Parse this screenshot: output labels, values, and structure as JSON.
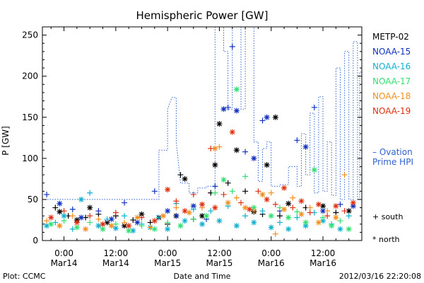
{
  "footer": {
    "left": "Plot: CCMC",
    "center": "Date and Time",
    "right": "2012/03/16 22:20:08"
  },
  "chart_data": {
    "type": "scatter",
    "title": "Hemispheric Power [GW]",
    "xlabel": "Date and Time",
    "ylabel": "P [GW]",
    "ylim": [
      0,
      260
    ],
    "xlim_hours": [
      -5,
      69
    ],
    "y_ticks": [
      0,
      50,
      100,
      150,
      200,
      250
    ],
    "x_ticks": [
      {
        "hours": 0,
        "time": "0:00",
        "date": "Mar14"
      },
      {
        "hours": 12,
        "time": "12:00",
        "date": "Mar14"
      },
      {
        "hours": 24,
        "time": "0:00",
        "date": "Mar15"
      },
      {
        "hours": 36,
        "time": "12:00",
        "date": "Mar15"
      },
      {
        "hours": 48,
        "time": "0:00",
        "date": "Mar16"
      },
      {
        "hours": 60,
        "time": "12:00",
        "date": "Mar16"
      }
    ],
    "grid": false,
    "legend_placement": "right",
    "symbol_legend": {
      "plus": "+ south",
      "star": "* north"
    },
    "series": [
      {
        "name": "METP-02",
        "color": "#000000",
        "points": [
          [
            -2,
            40,
            "+"
          ],
          [
            -1,
            35,
            "*"
          ],
          [
            1,
            30,
            "+"
          ],
          [
            3,
            25,
            "*"
          ],
          [
            5,
            28,
            "+"
          ],
          [
            6,
            40,
            "*"
          ],
          [
            8,
            32,
            "+"
          ],
          [
            10,
            22,
            "*"
          ],
          [
            12,
            30,
            "+"
          ],
          [
            14,
            18,
            "*"
          ],
          [
            16,
            25,
            "+"
          ],
          [
            18,
            32,
            "*"
          ],
          [
            20,
            22,
            "+"
          ],
          [
            22,
            28,
            "*"
          ],
          [
            24,
            20,
            "+"
          ],
          [
            26,
            30,
            "*"
          ],
          [
            27,
            80,
            "+"
          ],
          [
            28,
            75,
            "*"
          ],
          [
            30,
            26,
            "+"
          ],
          [
            32,
            30,
            "*"
          ],
          [
            34,
            58,
            "+"
          ],
          [
            35,
            92,
            "*"
          ],
          [
            36,
            142,
            "*"
          ],
          [
            38,
            70,
            "+"
          ],
          [
            40,
            110,
            "*"
          ],
          [
            42,
            60,
            "+"
          ],
          [
            44,
            35,
            "*"
          ],
          [
            46,
            32,
            "+"
          ],
          [
            47,
            92,
            "*"
          ],
          [
            49,
            150,
            "*"
          ],
          [
            50,
            30,
            "+"
          ],
          [
            52,
            45,
            "*"
          ],
          [
            56,
            40,
            "+"
          ],
          [
            60,
            42,
            "*"
          ],
          [
            63,
            34,
            "+"
          ],
          [
            66,
            36,
            "*"
          ]
        ]
      },
      {
        "name": "NOAA-15",
        "color": "#1030c0",
        "points": [
          [
            -4,
            56,
            "+"
          ],
          [
            -1,
            45,
            "*"
          ],
          [
            2,
            38,
            "+"
          ],
          [
            4,
            28,
            "*"
          ],
          [
            8,
            36,
            "+"
          ],
          [
            11,
            26,
            "*"
          ],
          [
            14,
            46,
            "+"
          ],
          [
            17,
            22,
            "*"
          ],
          [
            21,
            60,
            "+"
          ],
          [
            24,
            36,
            "*"
          ],
          [
            26,
            30,
            "+"
          ],
          [
            30,
            42,
            "*"
          ],
          [
            33,
            26,
            "+"
          ],
          [
            35,
            66,
            "+"
          ],
          [
            37,
            160,
            "*"
          ],
          [
            38,
            162,
            "+"
          ],
          [
            39,
            236,
            "+"
          ],
          [
            40,
            158,
            "*"
          ],
          [
            42,
            108,
            "+"
          ],
          [
            44,
            100,
            "*"
          ],
          [
            46,
            146,
            "+"
          ],
          [
            47,
            150,
            "*"
          ],
          [
            50,
            36,
            "+"
          ],
          [
            54,
            122,
            "+"
          ],
          [
            56,
            114,
            "*"
          ],
          [
            58,
            162,
            "+"
          ],
          [
            60,
            36,
            "*"
          ],
          [
            64,
            44,
            "+"
          ],
          [
            67,
            42,
            "*"
          ]
        ]
      },
      {
        "name": "NOAA-16",
        "color": "#10b0d0",
        "points": [
          [
            -4,
            18,
            "*"
          ],
          [
            -2,
            22,
            "+"
          ],
          [
            0,
            30,
            "*"
          ],
          [
            2,
            14,
            "+"
          ],
          [
            4,
            50,
            "*"
          ],
          [
            6,
            58,
            "+"
          ],
          [
            8,
            18,
            "*"
          ],
          [
            10,
            26,
            "+"
          ],
          [
            12,
            15,
            "*"
          ],
          [
            14,
            30,
            "+"
          ],
          [
            16,
            12,
            "*"
          ],
          [
            18,
            20,
            "+"
          ],
          [
            20,
            16,
            "*"
          ],
          [
            22,
            28,
            "+"
          ],
          [
            24,
            14,
            "*"
          ],
          [
            26,
            45,
            "+"
          ],
          [
            28,
            24,
            "*"
          ],
          [
            30,
            38,
            "+"
          ],
          [
            32,
            20,
            "*"
          ],
          [
            34,
            36,
            "+"
          ],
          [
            36,
            24,
            "*"
          ],
          [
            38,
            42,
            "+"
          ],
          [
            40,
            18,
            "*"
          ],
          [
            42,
            30,
            "+"
          ],
          [
            44,
            22,
            "*"
          ],
          [
            46,
            36,
            "+"
          ],
          [
            48,
            16,
            "*"
          ],
          [
            50,
            22,
            "+"
          ],
          [
            52,
            14,
            "*"
          ],
          [
            54,
            28,
            "+"
          ],
          [
            56,
            18,
            "*"
          ],
          [
            58,
            34,
            "+"
          ],
          [
            60,
            24,
            "*"
          ],
          [
            62,
            20,
            "+"
          ],
          [
            64,
            14,
            "*"
          ],
          [
            66,
            30,
            "+"
          ]
        ]
      },
      {
        "name": "NOAA-17",
        "color": "#30e070",
        "points": [
          [
            -3,
            20,
            "*"
          ],
          [
            0,
            24,
            "+"
          ],
          [
            3,
            16,
            "*"
          ],
          [
            6,
            22,
            "+"
          ],
          [
            9,
            14,
            "*"
          ],
          [
            12,
            20,
            "+"
          ],
          [
            15,
            12,
            "*"
          ],
          [
            18,
            18,
            "+"
          ],
          [
            21,
            14,
            "*"
          ],
          [
            24,
            22,
            "+"
          ],
          [
            27,
            18,
            "*"
          ],
          [
            30,
            26,
            "+"
          ],
          [
            33,
            30,
            "*"
          ],
          [
            35,
            58,
            "+"
          ],
          [
            37,
            74,
            "*"
          ],
          [
            39,
            60,
            "+"
          ],
          [
            40,
            184,
            "*"
          ],
          [
            42,
            78,
            "+"
          ],
          [
            44,
            40,
            "*"
          ],
          [
            46,
            56,
            "+"
          ],
          [
            48,
            30,
            "*"
          ],
          [
            50,
            40,
            "+"
          ],
          [
            52,
            28,
            "*"
          ],
          [
            54,
            35,
            "+"
          ],
          [
            56,
            22,
            "*"
          ],
          [
            58,
            86,
            "*"
          ],
          [
            60,
            28,
            "+"
          ],
          [
            62,
            18,
            "*"
          ],
          [
            64,
            24,
            "+"
          ],
          [
            66,
            14,
            "*"
          ]
        ]
      },
      {
        "name": "NOAA-18",
        "color": "#f09020",
        "points": [
          [
            -4,
            24,
            "+"
          ],
          [
            -1,
            18,
            "*"
          ],
          [
            2,
            30,
            "+"
          ],
          [
            5,
            14,
            "*"
          ],
          [
            8,
            26,
            "+"
          ],
          [
            11,
            18,
            "*"
          ],
          [
            14,
            22,
            "+"
          ],
          [
            17,
            28,
            "*"
          ],
          [
            20,
            16,
            "+"
          ],
          [
            23,
            30,
            "*"
          ],
          [
            26,
            40,
            "+"
          ],
          [
            29,
            34,
            "*"
          ],
          [
            32,
            40,
            "+"
          ],
          [
            35,
            112,
            "*"
          ],
          [
            36,
            114,
            "+"
          ],
          [
            38,
            46,
            "*"
          ],
          [
            40,
            52,
            "+"
          ],
          [
            42,
            40,
            "*"
          ],
          [
            44,
            36,
            "+"
          ],
          [
            46,
            56,
            "*"
          ],
          [
            48,
            58,
            "+"
          ],
          [
            49,
            8,
            "+"
          ],
          [
            51,
            38,
            "*"
          ],
          [
            53,
            52,
            "+"
          ],
          [
            55,
            32,
            "*"
          ],
          [
            57,
            40,
            "+"
          ],
          [
            59,
            22,
            "*"
          ],
          [
            61,
            36,
            "+"
          ],
          [
            63,
            28,
            "*"
          ],
          [
            65,
            80,
            "+"
          ]
        ]
      },
      {
        "name": "NOAA-19",
        "color": "#e03010",
        "points": [
          [
            -3,
            28,
            "*"
          ],
          [
            0,
            36,
            "+"
          ],
          [
            3,
            22,
            "*"
          ],
          [
            6,
            30,
            "+"
          ],
          [
            9,
            20,
            "*"
          ],
          [
            12,
            34,
            "+"
          ],
          [
            15,
            18,
            "*"
          ],
          [
            18,
            28,
            "+"
          ],
          [
            21,
            24,
            "*"
          ],
          [
            24,
            62,
            "*"
          ],
          [
            26,
            48,
            "+"
          ],
          [
            28,
            36,
            "*"
          ],
          [
            30,
            56,
            "+"
          ],
          [
            32,
            44,
            "*"
          ],
          [
            34,
            112,
            "+"
          ],
          [
            35,
            40,
            "*"
          ],
          [
            37,
            56,
            "+"
          ],
          [
            39,
            132,
            "*"
          ],
          [
            41,
            46,
            "+"
          ],
          [
            43,
            38,
            "*"
          ],
          [
            45,
            60,
            "+"
          ],
          [
            47,
            50,
            "*"
          ],
          [
            49,
            44,
            "+"
          ],
          [
            51,
            64,
            "*"
          ],
          [
            53,
            40,
            "+"
          ],
          [
            55,
            48,
            "*"
          ],
          [
            57,
            34,
            "+"
          ],
          [
            59,
            44,
            "*"
          ],
          [
            61,
            30,
            "+"
          ],
          [
            63,
            42,
            "*"
          ],
          [
            65,
            36,
            "+"
          ],
          [
            67,
            46,
            "*"
          ]
        ]
      }
    ],
    "ovation": {
      "name": "– Ovation Prime HPI",
      "label_line1": "– Ovation",
      "label_line2": "Prime HPI",
      "color": "#3060d0",
      "steps": [
        [
          -5,
          50
        ],
        [
          22,
          50
        ],
        [
          22,
          110
        ],
        [
          24,
          110
        ],
        [
          24,
          160
        ],
        [
          25,
          174
        ],
        [
          26,
          174
        ],
        [
          26,
          120
        ],
        [
          27,
          70
        ],
        [
          29,
          70
        ],
        [
          29,
          58
        ],
        [
          31,
          58
        ],
        [
          31,
          64
        ],
        [
          33,
          64
        ],
        [
          33,
          66
        ],
        [
          35,
          66
        ],
        [
          35,
          290
        ],
        [
          37,
          290
        ],
        [
          37,
          230
        ],
        [
          38,
          230
        ],
        [
          38,
          160
        ],
        [
          39,
          160
        ],
        [
          39,
          290
        ],
        [
          41,
          290
        ],
        [
          41,
          160
        ],
        [
          42,
          160
        ],
        [
          42,
          290
        ],
        [
          44,
          290
        ],
        [
          44,
          120
        ],
        [
          45,
          120
        ],
        [
          45,
          72
        ],
        [
          46,
          72
        ],
        [
          46,
          112
        ],
        [
          47,
          112
        ],
        [
          47,
          120
        ],
        [
          48,
          120
        ],
        [
          48,
          66
        ],
        [
          50,
          66
        ],
        [
          50,
          68
        ],
        [
          52,
          68
        ],
        [
          52,
          90
        ],
        [
          54,
          90
        ],
        [
          54,
          66
        ],
        [
          55,
          66
        ],
        [
          55,
          130
        ],
        [
          56,
          130
        ],
        [
          56,
          80
        ],
        [
          57,
          80
        ],
        [
          57,
          155
        ],
        [
          58,
          155
        ],
        [
          58,
          58
        ],
        [
          59,
          58
        ],
        [
          59,
          175
        ],
        [
          60,
          175
        ],
        [
          60,
          60
        ],
        [
          61,
          60
        ],
        [
          61,
          120
        ],
        [
          62,
          120
        ],
        [
          62,
          55
        ],
        [
          63,
          55
        ],
        [
          63,
          210
        ],
        [
          64,
          210
        ],
        [
          64,
          50
        ],
        [
          65,
          50
        ],
        [
          65,
          230
        ],
        [
          66,
          230
        ],
        [
          66,
          50
        ],
        [
          67,
          50
        ],
        [
          67,
          242
        ],
        [
          68,
          242
        ],
        [
          68,
          50
        ],
        [
          68.5,
          50
        ],
        [
          68.5,
          205
        ],
        [
          69,
          205
        ]
      ]
    }
  }
}
